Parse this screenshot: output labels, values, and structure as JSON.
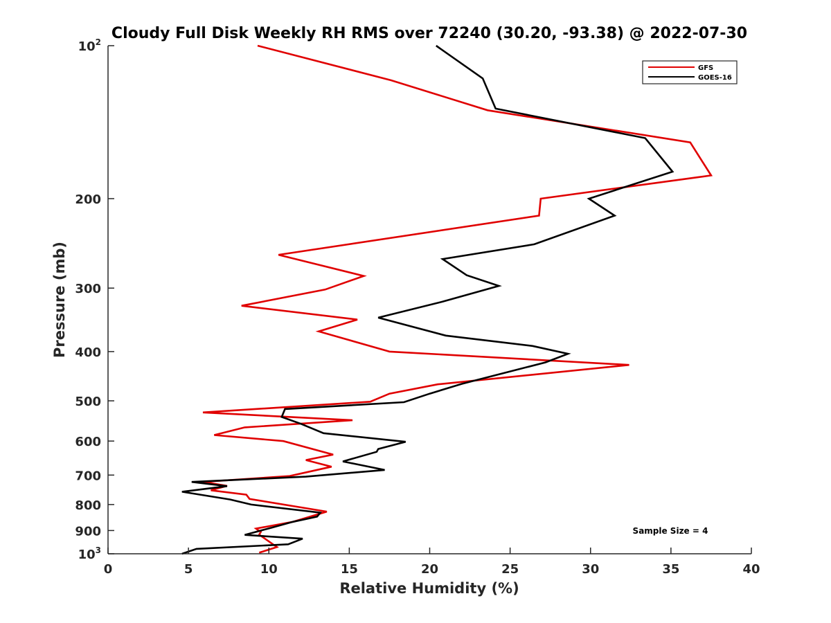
{
  "chart_data": {
    "type": "line",
    "title": "Cloudy Full Disk Weekly RH RMS over 72240 (30.20, -93.38) @ 2022-07-30",
    "xlabel": "Relative Humidity (%)",
    "ylabel": "Pressure (mb)",
    "xlim": [
      0,
      40
    ],
    "ylim": [
      100,
      1000
    ],
    "yscale": "log",
    "yreversed": true,
    "grid": false,
    "legend_position": "top-right",
    "x_ticks": [
      {
        "value": 0,
        "label": "0"
      },
      {
        "value": 5,
        "label": "5"
      },
      {
        "value": 10,
        "label": "10"
      },
      {
        "value": 15,
        "label": "15"
      },
      {
        "value": 20,
        "label": "20"
      },
      {
        "value": 25,
        "label": "25"
      },
      {
        "value": 30,
        "label": "30"
      },
      {
        "value": 35,
        "label": "35"
      },
      {
        "value": 40,
        "label": "40"
      }
    ],
    "y_ticks": [
      {
        "value": 100,
        "label": "10",
        "sup": "2"
      },
      {
        "value": 200,
        "label": "200",
        "sup": ""
      },
      {
        "value": 300,
        "label": "300",
        "sup": ""
      },
      {
        "value": 400,
        "label": "400",
        "sup": ""
      },
      {
        "value": 500,
        "label": "500",
        "sup": ""
      },
      {
        "value": 600,
        "label": "600",
        "sup": ""
      },
      {
        "value": 700,
        "label": "700",
        "sup": ""
      },
      {
        "value": 800,
        "label": "800",
        "sup": ""
      },
      {
        "value": 900,
        "label": "900",
        "sup": ""
      },
      {
        "value": 1000,
        "label": "10",
        "sup": "3"
      }
    ],
    "series": [
      {
        "name": "GFS",
        "color": "#e00000",
        "points": [
          [
            9.3,
            100
          ],
          [
            17.6,
            117
          ],
          [
            23.6,
            134
          ],
          [
            36.2,
            155
          ],
          [
            37.5,
            180
          ],
          [
            26.9,
            200
          ],
          [
            26.8,
            216
          ],
          [
            10.6,
            258
          ],
          [
            15.9,
            284
          ],
          [
            13.5,
            302
          ],
          [
            8.3,
            325
          ],
          [
            15.5,
            346
          ],
          [
            13.1,
            365
          ],
          [
            17.5,
            400
          ],
          [
            32.4,
            425
          ],
          [
            20.5,
            464
          ],
          [
            17.5,
            484
          ],
          [
            16.3,
            502
          ],
          [
            5.9,
            527
          ],
          [
            15.2,
            546
          ],
          [
            8.5,
            564
          ],
          [
            6.6,
            584
          ],
          [
            10.9,
            600
          ],
          [
            14.0,
            638
          ],
          [
            12.3,
            654
          ],
          [
            13.9,
            674
          ],
          [
            11.3,
            703
          ],
          [
            5.9,
            722
          ],
          [
            7.4,
            735
          ],
          [
            6.4,
            750
          ],
          [
            8.6,
            765
          ],
          [
            8.8,
            780
          ],
          [
            13.6,
            826
          ],
          [
            11.5,
            865
          ],
          [
            9.2,
            892
          ],
          [
            9.5,
            906
          ],
          [
            9.4,
            917
          ],
          [
            10.5,
            970
          ],
          [
            9.4,
            995
          ]
        ]
      },
      {
        "name": "GOES-16",
        "color": "#000000",
        "points": [
          [
            20.4,
            100
          ],
          [
            23.3,
            116
          ],
          [
            24.1,
            133
          ],
          [
            33.4,
            152
          ],
          [
            35.1,
            177
          ],
          [
            29.9,
            200
          ],
          [
            31.5,
            216
          ],
          [
            26.5,
            246
          ],
          [
            20.8,
            263
          ],
          [
            22.3,
            283
          ],
          [
            24.3,
            297
          ],
          [
            20.8,
            319
          ],
          [
            16.8,
            343
          ],
          [
            21.0,
            372
          ],
          [
            26.4,
            390
          ],
          [
            28.6,
            404
          ],
          [
            27.2,
            420
          ],
          [
            22.0,
            463
          ],
          [
            20.0,
            484
          ],
          [
            18.4,
            503
          ],
          [
            11.0,
            519
          ],
          [
            10.8,
            538
          ],
          [
            12.0,
            555
          ],
          [
            13.4,
            579
          ],
          [
            18.5,
            602
          ],
          [
            16.8,
            622
          ],
          [
            16.7,
            630
          ],
          [
            14.6,
            658
          ],
          [
            17.2,
            684
          ],
          [
            12.3,
            705
          ],
          [
            5.2,
            722
          ],
          [
            7.4,
            736
          ],
          [
            4.6,
            755
          ],
          [
            7.6,
            782
          ],
          [
            8.9,
            800
          ],
          [
            13.2,
            830
          ],
          [
            13.0,
            845
          ],
          [
            12.5,
            852
          ],
          [
            11.5,
            865
          ],
          [
            10.2,
            888
          ],
          [
            8.5,
            918
          ],
          [
            12.1,
            934
          ],
          [
            11.2,
            958
          ],
          [
            5.5,
            978
          ],
          [
            4.6,
            1000
          ]
        ]
      }
    ],
    "legend": [
      {
        "name": "GFS",
        "color": "#e00000"
      },
      {
        "name": "GOES-16",
        "color": "#000000"
      }
    ],
    "annotations": [
      {
        "text": "Sample Size = 4"
      }
    ]
  }
}
